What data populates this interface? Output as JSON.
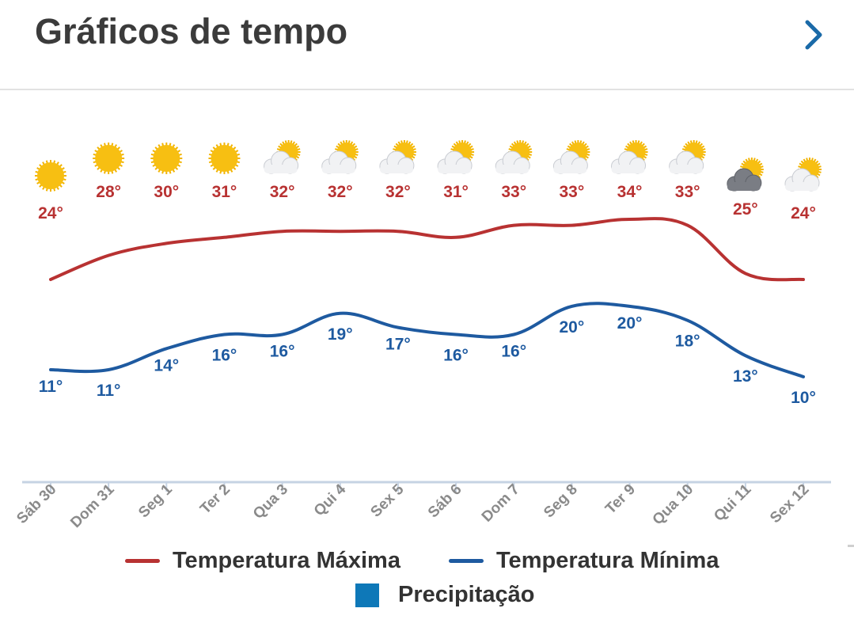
{
  "header": {
    "title": "Gráficos de tempo",
    "next_icon": "chevron-right-icon"
  },
  "colors": {
    "max": "#b83232",
    "min": "#1e5aa0",
    "precip": "#0e78b8",
    "axis": "#c6d3e3",
    "tick_label": "#8a8a8a"
  },
  "chart_data": {
    "type": "line",
    "categories": [
      "Sáb 30",
      "Dom 31",
      "Seg 1",
      "Ter 2",
      "Qua 3",
      "Qui 4",
      "Sex 5",
      "Sáb 6",
      "Dom 7",
      "Seg 8",
      "Ter 9",
      "Qua 10",
      "Qui 11",
      "Sex 12"
    ],
    "series": [
      {
        "name": "Temperatura Máxima",
        "values": [
          24,
          28,
          30,
          31,
          32,
          32,
          32,
          31,
          33,
          33,
          34,
          33,
          25,
          24
        ],
        "labels": [
          "24°",
          "28°",
          "30°",
          "31°",
          "32°",
          "32°",
          "32°",
          "31°",
          "33°",
          "33°",
          "34°",
          "33°",
          "25°",
          "24°"
        ]
      },
      {
        "name": "Temperatura Mínima",
        "values": [
          11,
          11,
          14,
          16,
          16,
          19,
          17,
          16,
          16,
          20,
          20,
          18,
          13,
          10
        ],
        "labels": [
          "11°",
          "11°",
          "14°",
          "16°",
          "16°",
          "19°",
          "17°",
          "16°",
          "16°",
          "20°",
          "20°",
          "18°",
          "13°",
          "10°"
        ]
      }
    ],
    "weather_icons": [
      "sun-icon",
      "sun-icon",
      "sun-icon",
      "sun-icon",
      "partly-cloudy-icon",
      "partly-cloudy-icon",
      "partly-cloudy-icon",
      "partly-cloudy-icon",
      "partly-cloudy-icon",
      "partly-cloudy-icon",
      "partly-cloudy-icon",
      "partly-cloudy-icon",
      "dark-cloud-sun-icon",
      "partly-cloudy-icon"
    ],
    "legend": [
      "Temperatura Máxima",
      "Temperatura Mínima",
      "Precipitação"
    ],
    "legend_position": "bottom",
    "grid": false
  }
}
